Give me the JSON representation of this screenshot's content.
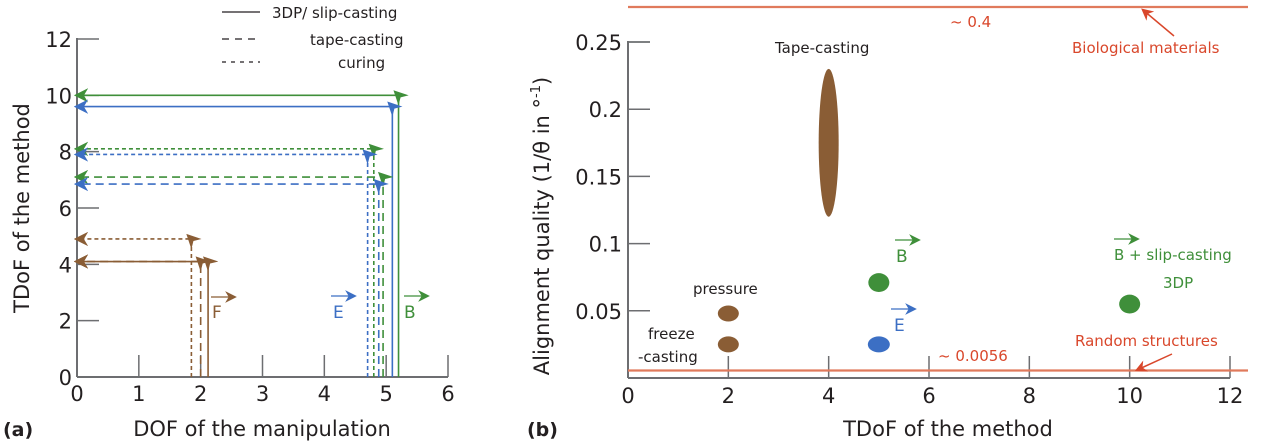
{
  "colors": {
    "axis": "#6d6e71",
    "text": "#231f20",
    "green": "#3f8f3a",
    "blue": "#3c6fc4",
    "brown": "#8a5d35",
    "red": "#d9472b",
    "redline": "#e07a5c"
  },
  "chart_data": [
    {
      "id": "a",
      "type": "line",
      "panel_label": "(a)",
      "title": "",
      "xlabel": "DOF of the manipulation",
      "ylabel": "TDoF of the method",
      "xlim": [
        0,
        6
      ],
      "ylim": [
        0,
        12
      ],
      "xticks": [
        0,
        1,
        2,
        3,
        4,
        5,
        6
      ],
      "yticks": [
        0,
        2,
        4,
        6,
        8,
        10,
        12
      ],
      "grid": false,
      "legend": {
        "placement": "top-right",
        "entries": [
          {
            "label": "3DP/ slip-casting",
            "style": "solid"
          },
          {
            "label": "tape-casting",
            "style": "long-dash"
          },
          {
            "label": "curing",
            "style": "short-dash"
          }
        ]
      },
      "series": [
        {
          "name": "B 3DP/ slip-casting",
          "field": "B",
          "color": "green",
          "style": "solid",
          "x": 5.2,
          "y": 10.0
        },
        {
          "name": "E 3DP/ slip-casting",
          "field": "E",
          "color": "blue",
          "style": "solid",
          "x": 5.1,
          "y": 9.6
        },
        {
          "name": "B curing",
          "field": "B",
          "color": "green",
          "style": "short-dash",
          "x": 4.8,
          "y": 8.1
        },
        {
          "name": "E curing",
          "field": "E",
          "color": "blue",
          "style": "short-dash",
          "x": 4.7,
          "y": 7.9
        },
        {
          "name": "B tape-casting",
          "field": "B",
          "color": "green",
          "style": "long-dash",
          "x": 4.95,
          "y": 7.1
        },
        {
          "name": "E tape-casting",
          "field": "E",
          "color": "blue",
          "style": "long-dash",
          "x": 4.88,
          "y": 6.85
        },
        {
          "name": "F curing",
          "field": "F",
          "color": "brown",
          "style": "short-dash",
          "x": 1.85,
          "y": 4.9
        },
        {
          "name": "F tape-casting",
          "field": "F",
          "color": "brown",
          "style": "long-dash",
          "x": 2.0,
          "y": 4.1
        },
        {
          "name": "F 3DP/ slip-casting",
          "field": "F",
          "color": "brown",
          "style": "solid",
          "x": 2.12,
          "y": 4.1
        }
      ],
      "annotations": [
        {
          "text": "F",
          "vector": true,
          "color": "brown",
          "x": 2.3,
          "y": 2.2
        },
        {
          "text": "E",
          "vector": true,
          "color": "blue",
          "x": 4.4,
          "y": 2.2
        },
        {
          "text": "B",
          "vector": true,
          "color": "green",
          "x": 5.5,
          "y": 2.2
        }
      ]
    },
    {
      "id": "b",
      "type": "scatter",
      "panel_label": "(b)",
      "title": "",
      "xlabel": "TDoF of the method",
      "ylabel": "Alignment quality (1/θ in °⁻¹)",
      "ylabel_main": "Alignment quality (1/θ in °",
      "ylabel_sup": "-1",
      "ylabel_close": ")",
      "xlim": [
        0,
        12
      ],
      "ylim": [
        0,
        0.25
      ],
      "xticks": [
        0,
        2,
        4,
        6,
        8,
        10,
        12
      ],
      "xtick_labels": [
        "0",
        "2",
        "4",
        "6",
        "8",
        "10",
        "12"
      ],
      "yticks": [
        0.05,
        0.1,
        0.15,
        0.2,
        0.25
      ],
      "ytick_labels": [
        "0.05",
        "0.1",
        "0.15",
        "0.2",
        "0.25"
      ],
      "grid": false,
      "points": [
        {
          "name": "freeze-casting",
          "x": 2,
          "y": 0.025,
          "y_range": [
            0.02,
            0.03
          ],
          "color": "brown"
        },
        {
          "name": "pressure",
          "x": 2,
          "y": 0.048,
          "y_range": [
            0.043,
            0.053
          ],
          "color": "brown"
        },
        {
          "name": "Tape-casting",
          "x": 4,
          "y": 0.175,
          "y_range": [
            0.12,
            0.23
          ],
          "color": "brown"
        },
        {
          "name": "E",
          "x": 5,
          "y": 0.025,
          "y_range": [
            0.021,
            0.029
          ],
          "color": "blue"
        },
        {
          "name": "B",
          "x": 5,
          "y": 0.071,
          "y_range": [
            0.064,
            0.078
          ],
          "color": "green"
        },
        {
          "name": "B + slip-casting 3DP",
          "x": 10,
          "y": 0.055,
          "y_range": [
            0.048,
            0.062
          ],
          "color": "green"
        }
      ],
      "reference_lines": [
        {
          "name": "Biological materials",
          "value_label": "~ 0.4",
          "value": 0.4,
          "color": "red"
        },
        {
          "name": "Random structures",
          "value_label": "~ 0.0056",
          "value": 0.0056,
          "color": "red"
        }
      ],
      "annotations": [
        {
          "text": "Tape-casting",
          "color": "text"
        },
        {
          "text": "pressure",
          "color": "text"
        },
        {
          "text_lines": [
            "freeze",
            "-casting"
          ],
          "color": "text"
        },
        {
          "text": "B",
          "vector": true,
          "color": "green"
        },
        {
          "text": "E",
          "vector": true,
          "color": "blue"
        },
        {
          "text_lines": [
            "B + slip-casting",
            "3DP"
          ],
          "vector_first": true,
          "color": "green"
        },
        {
          "text": "~ 0.4",
          "color": "red"
        },
        {
          "text": "Biological materials",
          "color": "red",
          "arrow": true
        },
        {
          "text": "~ 0.0056",
          "color": "red"
        },
        {
          "text": "Random structures",
          "color": "red",
          "arrow": true
        }
      ]
    }
  ]
}
